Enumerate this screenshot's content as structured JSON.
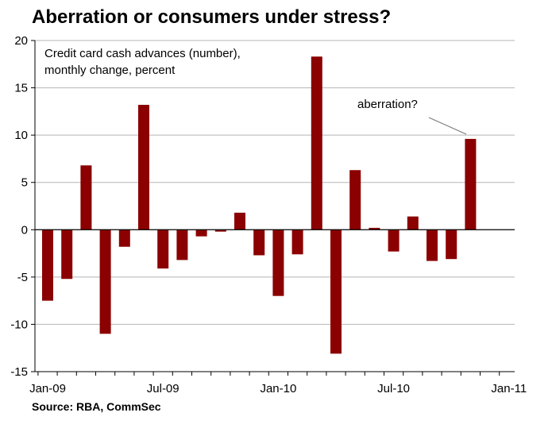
{
  "title": "Aberration or consumers under stress?",
  "source": "Source: RBA, CommSec",
  "chart_data": {
    "type": "bar",
    "subtitle_lines": [
      "Credit card cash advances (number),",
      "monthly change, percent"
    ],
    "annotation": "aberration?",
    "bar_color": "#8b0000",
    "ylim": [
      -15,
      20
    ],
    "yticks": [
      -15,
      -10,
      -5,
      0,
      5,
      10,
      15,
      20
    ],
    "xtick_labels": [
      "Jan-09",
      "Jul-09",
      "Jan-10",
      "Jul-10",
      "Jan-11"
    ],
    "grid": true,
    "categories": [
      "Jan-09",
      "Feb-09",
      "Mar-09",
      "Apr-09",
      "May-09",
      "Jun-09",
      "Jul-09",
      "Aug-09",
      "Sep-09",
      "Oct-09",
      "Nov-09",
      "Dec-09",
      "Jan-10",
      "Feb-10",
      "Mar-10",
      "Apr-10",
      "May-10",
      "Jun-10",
      "Jul-10",
      "Aug-10",
      "Sep-10",
      "Oct-10",
      "Nov-10"
    ],
    "values": [
      -7.5,
      -5.2,
      6.8,
      -11.0,
      -1.8,
      13.2,
      -4.1,
      -3.2,
      -0.7,
      -0.2,
      1.8,
      -2.7,
      -7.0,
      -2.6,
      18.3,
      -13.1,
      6.3,
      0.2,
      -2.3,
      1.4,
      -3.3,
      -3.1,
      9.6
    ]
  }
}
